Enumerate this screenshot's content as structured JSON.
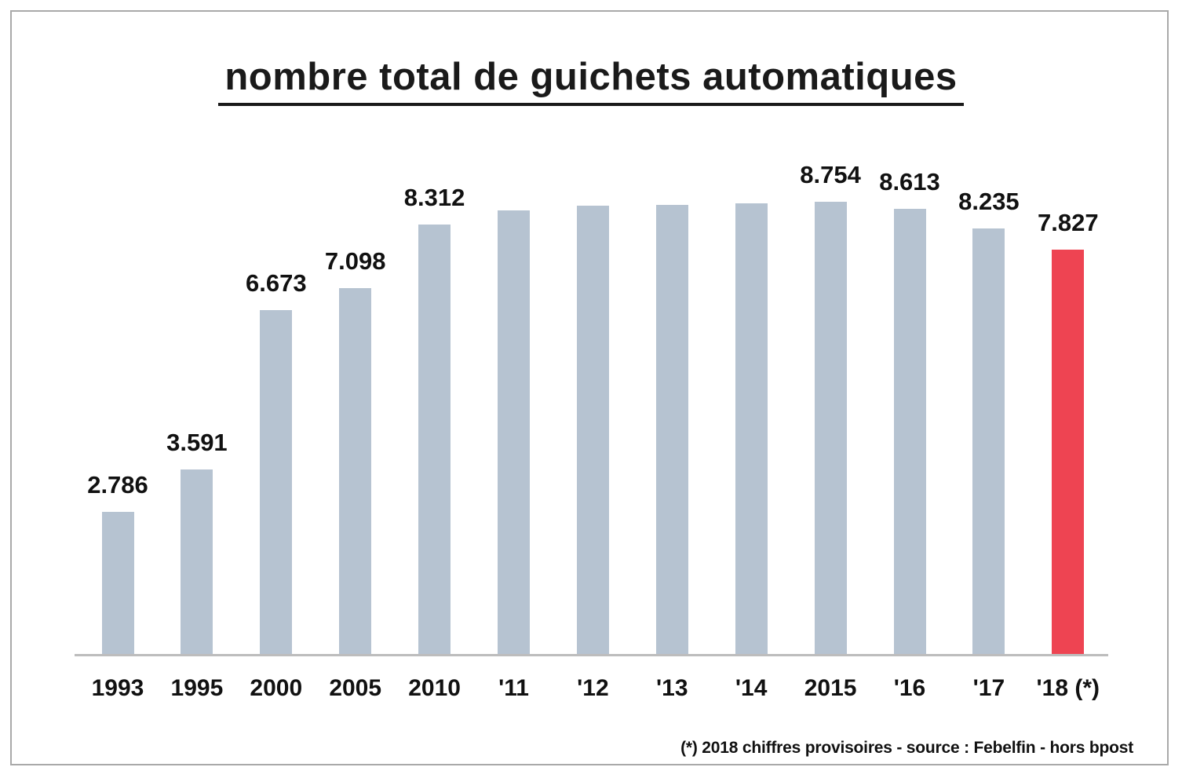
{
  "chart_data": {
    "type": "bar",
    "title": "nombre total de guichets automatiques",
    "categories": [
      "1993",
      "1995",
      "2000",
      "2005",
      "2010",
      "'11",
      "'12",
      "'13",
      "'14",
      "2015",
      "'16",
      "'17",
      "'18 (*)"
    ],
    "values": [
      2786,
      3591,
      6673,
      7098,
      8312,
      8590,
      8680,
      8690,
      8720,
      8754,
      8613,
      8235,
      7827
    ],
    "data_labels": [
      "2.786",
      "3.591",
      "6.673",
      "7.098",
      "8.312",
      "",
      "",
      "",
      "",
      "8.754",
      "8.613",
      "8.235",
      "7.827"
    ],
    "highlight_index": 12,
    "colors": {
      "bar": "#b6c3d1",
      "highlight": "#ee4452",
      "text": "#111111",
      "axis_line": "#bdbdbd"
    },
    "xlabel": "",
    "ylabel": "",
    "ylim": [
      0,
      9000
    ],
    "grid": false,
    "legend": "none",
    "footnote": "(*) 2018 chiffres provisoires - source : Febelfin - hors bpost"
  }
}
